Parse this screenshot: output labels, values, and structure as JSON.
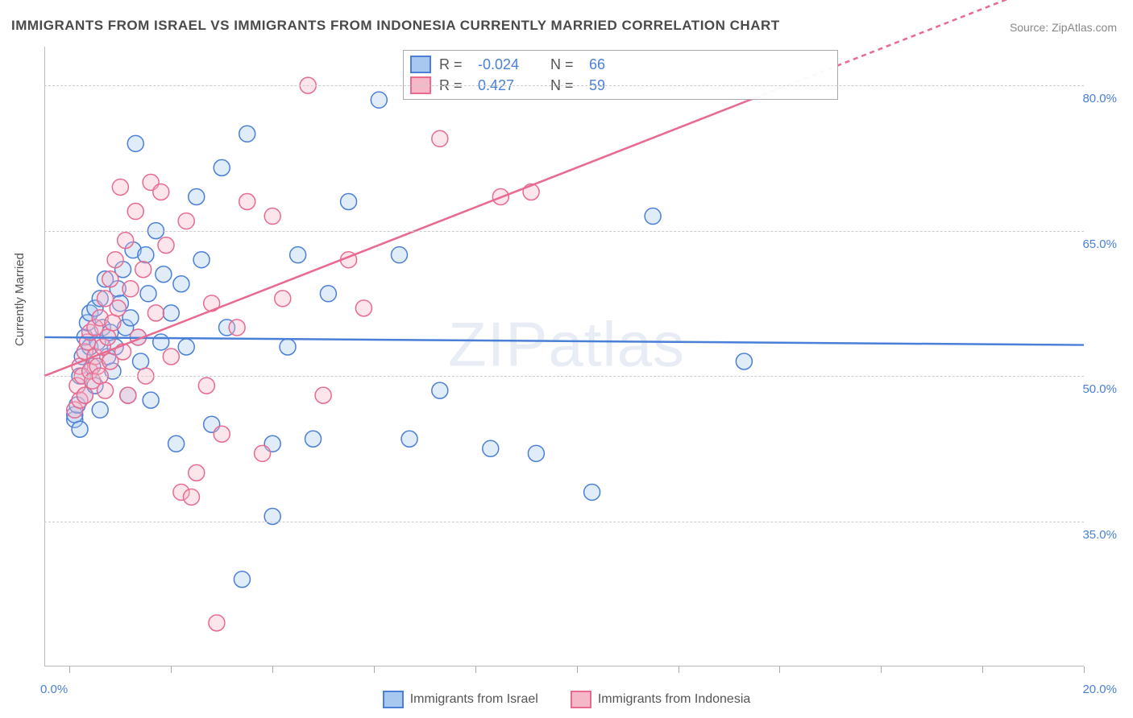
{
  "chart": {
    "type": "scatter",
    "title": "IMMIGRANTS FROM ISRAEL VS IMMIGRANTS FROM INDONESIA CURRENTLY MARRIED CORRELATION CHART",
    "source_label": "Source:",
    "source_value": "ZipAtlas.com",
    "ylabel": "Currently Married",
    "watermark": "ZIPatlas",
    "background_color": "#ffffff",
    "grid_color": "#cccccc",
    "axis_color": "#bbbbbb",
    "label_color": "#555555",
    "tick_label_color": "#4a7fd8",
    "title_fontsize": 17,
    "label_fontsize": 15,
    "tick_fontsize": 15,
    "legend_fontsize": 16,
    "marker_radius": 10,
    "marker_stroke_width": 1.5,
    "marker_fill_opacity": 0.35,
    "trend_line_width": 2.5,
    "x_axis": {
      "min": -0.5,
      "max": 20.0,
      "ticks": [
        0,
        2,
        4,
        6,
        8,
        10,
        12,
        14,
        16,
        18,
        20
      ],
      "limit_labels": {
        "left": "0.0%",
        "right": "20.0%"
      }
    },
    "y_axis": {
      "min": 20.0,
      "max": 84.0,
      "grid_values": [
        35.0,
        50.0,
        65.0,
        80.0
      ],
      "grid_labels": [
        "35.0%",
        "50.0%",
        "65.0%",
        "80.0%"
      ]
    },
    "series": [
      {
        "name": "Immigrants from Israel",
        "fill_color": "#a9c8ef",
        "stroke_color": "#4a7fd8",
        "stats": {
          "R": "-0.024",
          "N": "66"
        },
        "trend": {
          "y_at_xmin": 54.0,
          "y_at_xmax": 53.2
        },
        "points": [
          [
            0.1,
            45.5
          ],
          [
            0.1,
            46.0
          ],
          [
            0.15,
            47.0
          ],
          [
            0.2,
            44.5
          ],
          [
            0.2,
            50.0
          ],
          [
            0.25,
            52.0
          ],
          [
            0.3,
            48.0
          ],
          [
            0.3,
            54.0
          ],
          [
            0.35,
            55.5
          ],
          [
            0.4,
            53.0
          ],
          [
            0.4,
            56.5
          ],
          [
            0.45,
            51.0
          ],
          [
            0.5,
            57.0
          ],
          [
            0.5,
            49.0
          ],
          [
            0.55,
            53.5
          ],
          [
            0.6,
            58.0
          ],
          [
            0.6,
            46.5
          ],
          [
            0.65,
            55.0
          ],
          [
            0.7,
            60.0
          ],
          [
            0.75,
            52.0
          ],
          [
            0.8,
            54.5
          ],
          [
            0.85,
            50.5
          ],
          [
            0.9,
            53.0
          ],
          [
            0.95,
            59.0
          ],
          [
            1.0,
            57.5
          ],
          [
            1.05,
            61.0
          ],
          [
            1.1,
            55.0
          ],
          [
            1.15,
            48.0
          ],
          [
            1.2,
            56.0
          ],
          [
            1.25,
            63.0
          ],
          [
            1.3,
            74.0
          ],
          [
            1.35,
            54.0
          ],
          [
            1.4,
            51.5
          ],
          [
            1.5,
            62.5
          ],
          [
            1.55,
            58.5
          ],
          [
            1.6,
            47.5
          ],
          [
            1.7,
            65.0
          ],
          [
            1.8,
            53.5
          ],
          [
            1.85,
            60.5
          ],
          [
            2.0,
            56.5
          ],
          [
            2.1,
            43.0
          ],
          [
            2.2,
            59.5
          ],
          [
            2.3,
            53.0
          ],
          [
            2.5,
            68.5
          ],
          [
            2.6,
            62.0
          ],
          [
            2.8,
            45.0
          ],
          [
            3.0,
            71.5
          ],
          [
            3.1,
            55.0
          ],
          [
            3.4,
            29.0
          ],
          [
            3.5,
            75.0
          ],
          [
            4.0,
            43.0
          ],
          [
            4.0,
            35.5
          ],
          [
            4.3,
            53.0
          ],
          [
            4.5,
            62.5
          ],
          [
            4.8,
            43.5
          ],
          [
            5.1,
            58.5
          ],
          [
            5.5,
            68.0
          ],
          [
            6.1,
            78.5
          ],
          [
            6.5,
            62.5
          ],
          [
            7.3,
            48.5
          ],
          [
            8.3,
            42.5
          ],
          [
            9.2,
            42.0
          ],
          [
            10.3,
            38.0
          ],
          [
            11.5,
            66.5
          ],
          [
            13.3,
            51.5
          ],
          [
            6.7,
            43.5
          ]
        ]
      },
      {
        "name": "Immigrants from Indonesia",
        "fill_color": "#f5b8c9",
        "stroke_color": "#e86a8f",
        "stats": {
          "R": "0.427",
          "N": "59"
        },
        "trend": {
          "y_at_xmin": 50.0,
          "y_at_xmax": 92.0,
          "dash_after_x": 13.5
        },
        "points": [
          [
            0.1,
            46.5
          ],
          [
            0.15,
            49.0
          ],
          [
            0.2,
            47.5
          ],
          [
            0.2,
            51.0
          ],
          [
            0.25,
            50.0
          ],
          [
            0.3,
            52.5
          ],
          [
            0.3,
            48.0
          ],
          [
            0.35,
            53.5
          ],
          [
            0.4,
            50.5
          ],
          [
            0.4,
            54.5
          ],
          [
            0.45,
            49.5
          ],
          [
            0.5,
            52.0
          ],
          [
            0.5,
            55.0
          ],
          [
            0.55,
            51.0
          ],
          [
            0.6,
            56.0
          ],
          [
            0.6,
            50.0
          ],
          [
            0.65,
            53.0
          ],
          [
            0.7,
            58.0
          ],
          [
            0.7,
            48.5
          ],
          [
            0.75,
            54.0
          ],
          [
            0.8,
            60.0
          ],
          [
            0.8,
            51.5
          ],
          [
            0.85,
            55.5
          ],
          [
            0.9,
            62.0
          ],
          [
            0.95,
            57.0
          ],
          [
            1.0,
            69.5
          ],
          [
            1.05,
            52.5
          ],
          [
            1.1,
            64.0
          ],
          [
            1.15,
            48.0
          ],
          [
            1.2,
            59.0
          ],
          [
            1.3,
            67.0
          ],
          [
            1.35,
            54.0
          ],
          [
            1.45,
            61.0
          ],
          [
            1.5,
            50.0
          ],
          [
            1.6,
            70.0
          ],
          [
            1.7,
            56.5
          ],
          [
            1.8,
            69.0
          ],
          [
            1.9,
            63.5
          ],
          [
            2.0,
            52.0
          ],
          [
            2.2,
            38.0
          ],
          [
            2.3,
            66.0
          ],
          [
            2.5,
            40.0
          ],
          [
            2.7,
            49.0
          ],
          [
            2.8,
            57.5
          ],
          [
            2.9,
            24.5
          ],
          [
            3.0,
            44.0
          ],
          [
            3.3,
            55.0
          ],
          [
            3.5,
            68.0
          ],
          [
            3.8,
            42.0
          ],
          [
            4.0,
            66.5
          ],
          [
            4.2,
            58.0
          ],
          [
            4.7,
            80.0
          ],
          [
            5.0,
            48.0
          ],
          [
            5.5,
            62.0
          ],
          [
            5.8,
            57.0
          ],
          [
            7.3,
            74.5
          ],
          [
            8.5,
            68.5
          ],
          [
            9.1,
            69.0
          ],
          [
            2.4,
            37.5
          ]
        ]
      }
    ],
    "stats_labels": {
      "R": "R =",
      "N": "N ="
    }
  }
}
